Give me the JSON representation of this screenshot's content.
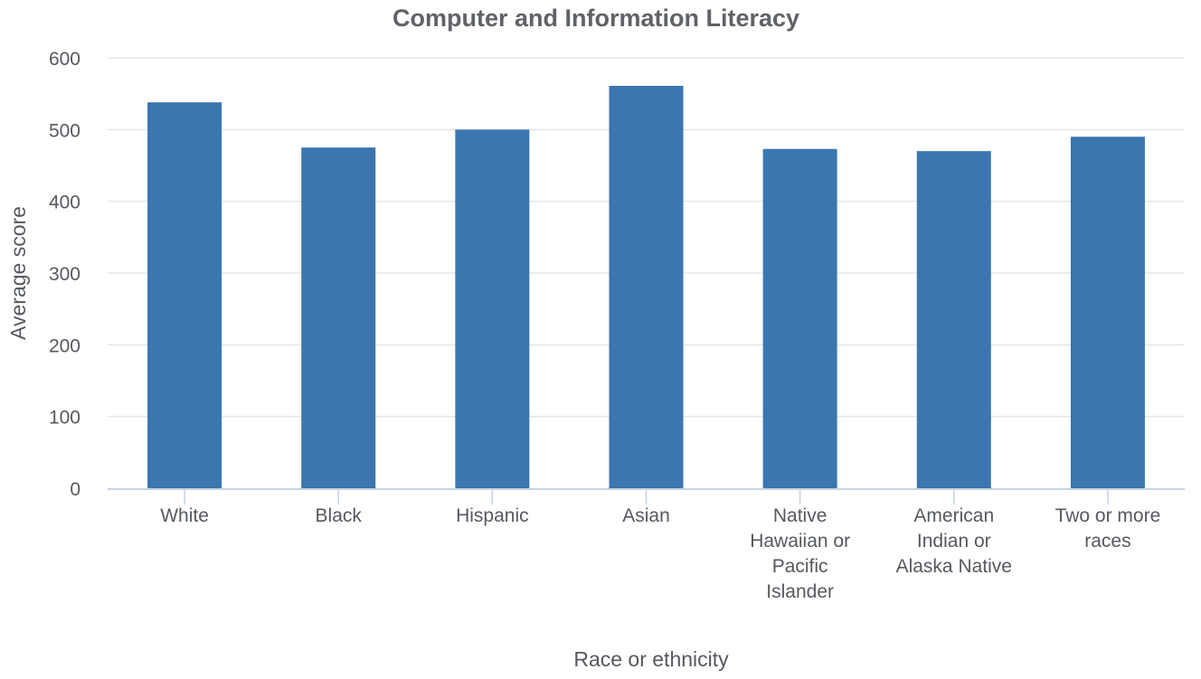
{
  "chart_data": {
    "type": "bar",
    "title": "Computer and Information Literacy",
    "xlabel": "Race or ethnicity",
    "ylabel": "Average score",
    "categories": [
      [
        "White"
      ],
      [
        "Black"
      ],
      [
        "Hispanic"
      ],
      [
        "Asian"
      ],
      [
        "Native",
        "Hawaiian or",
        "Pacific",
        "Islander"
      ],
      [
        "American",
        "Indian or",
        "Alaska Native"
      ],
      [
        "Two or more",
        "races"
      ]
    ],
    "values": [
      538,
      475,
      500,
      561,
      473,
      470,
      490
    ],
    "ylim": [
      0,
      600
    ],
    "yticks": [
      0,
      100,
      200,
      300,
      400,
      500,
      600
    ],
    "grid": true,
    "legend": "none",
    "colors": {
      "bar": "#3b76af",
      "grid": "#e3e5e8",
      "axis": "#c7d3e0",
      "text": "#55595e",
      "title": "#5f6266"
    }
  }
}
